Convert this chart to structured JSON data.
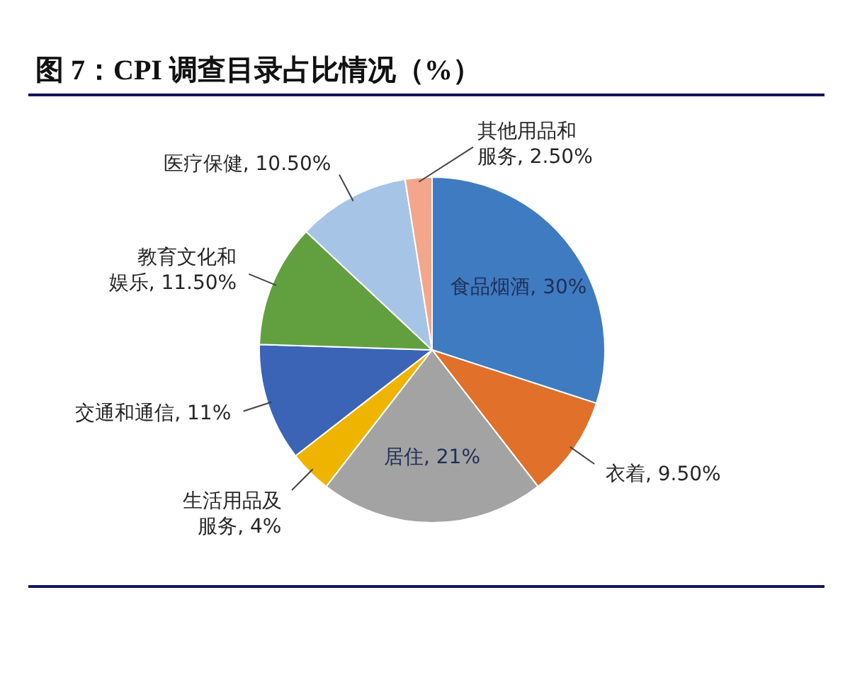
{
  "chart_data": {
    "type": "pie",
    "title": "图 7：CPI 调查目录占比情况（%）",
    "categories": [
      "食品烟酒",
      "衣着",
      "居住",
      "生活用品及服务",
      "交通和通信",
      "教育文化和娱乐",
      "医疗保健",
      "其他用品和服务"
    ],
    "values": [
      30,
      9.5,
      21,
      4,
      11,
      11.5,
      10.5,
      2.5
    ],
    "value_labels": [
      "30%",
      "9.50%",
      "21%",
      "4%",
      "11%",
      "11.50%",
      "10.50%",
      "2.50%"
    ],
    "colors": [
      "#3f7bc1",
      "#e0702a",
      "#a3a3a3",
      "#efb400",
      "#3b64b6",
      "#62a03f",
      "#a6c4e6",
      "#f2a68c"
    ]
  }
}
